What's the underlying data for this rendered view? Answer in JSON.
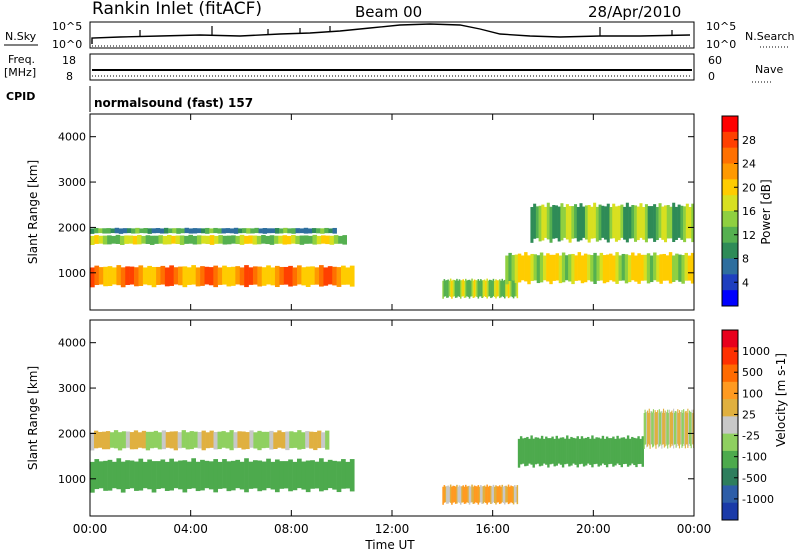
{
  "header": {
    "station": "Rankin Inlet (fitACF)",
    "beam": "Beam 00",
    "date": "28/Apr/2010"
  },
  "status_panel": {
    "nsky_label": "N.Sky",
    "nsky_ticks": [
      "10^5",
      "10^0"
    ],
    "nsearch_label": "N.Search",
    "nsearch_ticks": [
      "10^5",
      "10^0"
    ],
    "freq_label": "Freq.",
    "freq_unit": "[MHz]",
    "freq_ticks": [
      "18",
      "8"
    ],
    "nave_label": "Nave",
    "nave_ticks": [
      "60",
      "0"
    ],
    "cpid_label": "CPID",
    "cpid_text": "normalsound (fast) 157"
  },
  "colors": {
    "power_scale": [
      "#0000ff",
      "#1f3fbf",
      "#2e6e9e",
      "#2e8b57",
      "#55b050",
      "#8fd040",
      "#d8e020",
      "#ffcc00",
      "#ff9900",
      "#ff7000",
      "#ff4000",
      "#ff0000"
    ],
    "velocity_scale": [
      "#e8001c",
      "#ff3000",
      "#ff6a00",
      "#ff9a20",
      "#e0b040",
      "#c8c8c8",
      "#8fd060",
      "#4daa4d",
      "#2e7e5e",
      "#2e5ea8",
      "#1a3aa8"
    ]
  },
  "chart_data": [
    {
      "type": "heatmap",
      "name": "power",
      "xlabel": "",
      "ylabel": "Slant Range [km]",
      "xlim": [
        "00:00",
        "24:00"
      ],
      "ylim": [
        180,
        4500
      ],
      "yticks": [
        "1000",
        "2000",
        "3000",
        "4000"
      ],
      "colorbar": {
        "label": "Power [dB]",
        "ticks": [
          "28",
          "24",
          "20",
          "16",
          "12",
          "8",
          "4"
        ],
        "range": [
          0,
          30
        ]
      },
      "bands": [
        {
          "t": [
            0.0,
            9.8
          ],
          "r": [
            1850,
            2000
          ],
          "value": 9
        },
        {
          "t": [
            0.0,
            10.2
          ],
          "r": [
            1600,
            1850
          ],
          "value": 14
        },
        {
          "t": [
            0.0,
            10.5
          ],
          "r": [
            650,
            1200
          ],
          "value": 22
        },
        {
          "t": [
            14.0,
            17.0
          ],
          "r": [
            400,
            900
          ],
          "value": 14
        },
        {
          "t": [
            16.5,
            24.0
          ],
          "r": [
            700,
            1500
          ],
          "value": 16
        },
        {
          "t": [
            17.5,
            24.0
          ],
          "r": [
            1600,
            2600
          ],
          "value": 12
        }
      ]
    },
    {
      "type": "heatmap",
      "name": "velocity",
      "xlabel": "Time UT",
      "ylabel": "Slant Range [km]",
      "xlim": [
        "00:00",
        "24:00"
      ],
      "ylim": [
        180,
        4500
      ],
      "xticks": [
        "00:00",
        "04:00",
        "08:00",
        "12:00",
        "16:00",
        "20:00",
        "00:00"
      ],
      "yticks": [
        "1000",
        "2000",
        "3000",
        "4000"
      ],
      "colorbar": {
        "label": "Velocity [m s-1]",
        "ticks": [
          "1000",
          "500",
          "100",
          "25",
          "-25",
          "-100",
          "-500",
          "-1000"
        ],
        "range": [
          -1000,
          1000
        ]
      },
      "bands": [
        {
          "t": [
            0.0,
            9.5
          ],
          "r": [
            1600,
            2100
          ],
          "value": 0
        },
        {
          "t": [
            0.0,
            10.5
          ],
          "r": [
            650,
            1500
          ],
          "value": -200
        },
        {
          "t": [
            14.0,
            17.0
          ],
          "r": [
            400,
            900
          ],
          "value": 80
        },
        {
          "t": [
            17.0,
            22.0
          ],
          "r": [
            1200,
            2000
          ],
          "value": -300
        },
        {
          "t": [
            22.0,
            24.0
          ],
          "r": [
            1600,
            2600
          ],
          "value": 0
        }
      ]
    }
  ]
}
